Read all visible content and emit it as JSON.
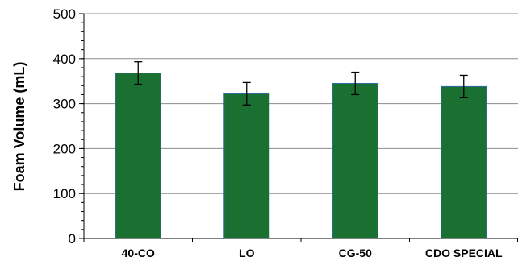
{
  "chart_data": {
    "type": "bar",
    "title": "",
    "xlabel": "",
    "ylabel": "Foam Volume (mL)",
    "categories": [
      "40-CO",
      "LO",
      "CG-50",
      "CDO SPECIAL"
    ],
    "values": [
      368,
      322,
      345,
      338
    ],
    "error": [
      25,
      25,
      25,
      25
    ],
    "ylim": [
      0,
      500
    ],
    "yticks": [
      "0",
      "100",
      "200",
      "300",
      "400",
      "500"
    ],
    "grid": true,
    "legend": "none",
    "colors": {
      "bar_fill": "#1a7030",
      "bar_stroke": "#2e6da4",
      "grid": "#8c8c8c",
      "axis": "#000000"
    }
  }
}
